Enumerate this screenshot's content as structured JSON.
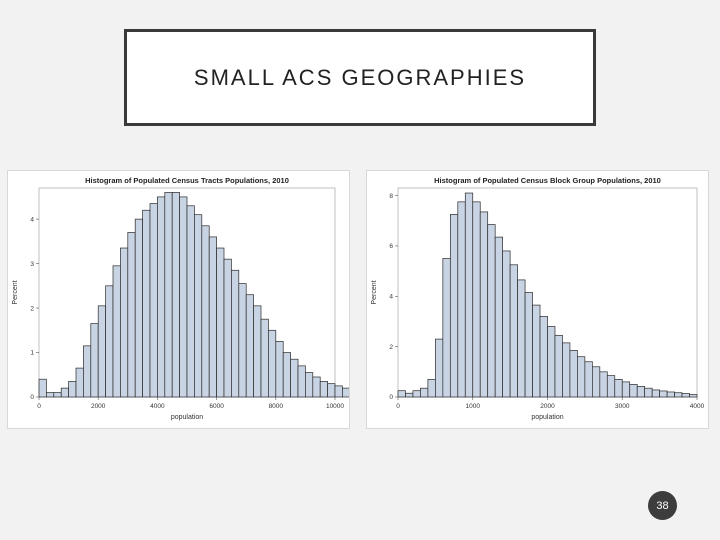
{
  "slide": {
    "title": "SMALL ACS GEOGRAPHIES",
    "page_number": "38"
  },
  "chart_data": [
    {
      "type": "bar",
      "title": "Histogram of Populated Census Tracts Populations, 2010",
      "xlabel": "population",
      "ylabel": "Percent",
      "bin_start": 0,
      "bin_width": 250,
      "xlim": [
        0,
        10000
      ],
      "ylim": [
        0,
        4.7
      ],
      "xticks": [
        "0",
        "2000",
        "4000",
        "6000",
        "8000",
        "10000"
      ],
      "xtick_values": [
        0,
        2000,
        4000,
        6000,
        8000,
        10000
      ],
      "yticks": [
        "0",
        "1",
        "2",
        "3",
        "4"
      ],
      "ytick_values": [
        0,
        1,
        2,
        3,
        4
      ],
      "values": [
        0.4,
        0.1,
        0.1,
        0.2,
        0.35,
        0.65,
        1.15,
        1.65,
        2.05,
        2.5,
        2.95,
        3.35,
        3.7,
        4.0,
        4.2,
        4.35,
        4.5,
        4.6,
        4.6,
        4.5,
        4.3,
        4.1,
        3.85,
        3.6,
        3.35,
        3.1,
        2.85,
        2.55,
        2.3,
        2.05,
        1.75,
        1.5,
        1.25,
        1.0,
        0.85,
        0.7,
        0.55,
        0.45,
        0.35,
        0.3,
        0.25,
        0.2,
        0.15,
        0.12,
        0.08
      ],
      "bar_fill": "#c8d3e3",
      "bar_stroke": "#2a2a2a"
    },
    {
      "type": "bar",
      "title": "Histogram of Populated Census Block Group Populations, 2010",
      "xlabel": "population",
      "ylabel": "Percent",
      "bin_start": 0,
      "bin_width": 100,
      "xlim": [
        0,
        4000
      ],
      "ylim": [
        0,
        8.3
      ],
      "xticks": [
        "0",
        "1000",
        "2000",
        "3000",
        "4000"
      ],
      "xtick_values": [
        0,
        1000,
        2000,
        3000,
        4000
      ],
      "yticks": [
        "0",
        "2",
        "4",
        "6",
        "8"
      ],
      "ytick_values": [
        0,
        2,
        4,
        6,
        8
      ],
      "values": [
        0.25,
        0.15,
        0.25,
        0.35,
        0.7,
        2.3,
        5.5,
        7.25,
        7.75,
        8.1,
        7.75,
        7.35,
        6.85,
        6.35,
        5.8,
        5.25,
        4.65,
        4.15,
        3.65,
        3.2,
        2.8,
        2.45,
        2.15,
        1.85,
        1.6,
        1.4,
        1.2,
        1.0,
        0.85,
        0.7,
        0.6,
        0.5,
        0.42,
        0.35,
        0.28,
        0.24,
        0.2,
        0.17,
        0.14,
        0.1
      ],
      "bar_fill": "#c8d3e3",
      "bar_stroke": "#2a2a2a"
    }
  ]
}
